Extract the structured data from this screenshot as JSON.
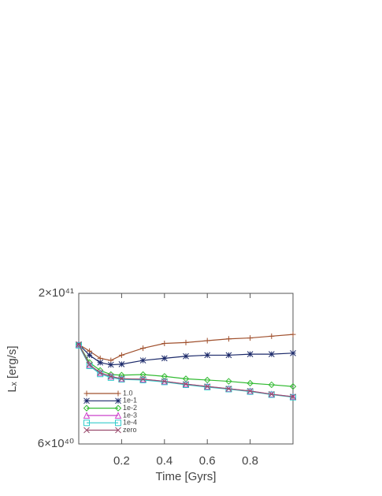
{
  "chart_data": {
    "type": "line",
    "xlabel": "Time [Gyrs]",
    "ylabel": "Lₓ [erg/s]",
    "x": [
      0,
      0.05,
      0.1,
      0.15,
      0.2,
      0.3,
      0.4,
      0.5,
      0.6,
      0.7,
      0.8,
      0.9,
      1.0
    ],
    "xlim": [
      0,
      1.0
    ],
    "xticks": [
      0.2,
      0.4,
      0.6,
      0.8
    ],
    "ylim": [
      6e+40,
      2e+41
    ],
    "ylog": true,
    "yticks": [
      {
        "value": 2e+41,
        "label": "2×10⁴¹"
      },
      {
        "value": 6e+40,
        "label": "6×10⁴⁰"
      }
    ],
    "legend": "lower left",
    "series": [
      {
        "name": "1.0",
        "color": "#a0502d",
        "marker": "plus",
        "values": [
          1.33e+41,
          1.26e+41,
          1.19e+41,
          1.17e+41,
          1.22e+41,
          1.29e+41,
          1.34e+41,
          1.35e+41,
          1.37e+41,
          1.39e+41,
          1.4e+41,
          1.42e+41,
          1.44e+41
        ]
      },
      {
        "name": "1e-1",
        "color": "#1c2a6a",
        "marker": "star",
        "values": [
          1.33e+41,
          1.22e+41,
          1.15e+41,
          1.13e+41,
          1.135e+41,
          1.17e+41,
          1.19e+41,
          1.21e+41,
          1.22e+41,
          1.22e+41,
          1.23e+41,
          1.23e+41,
          1.24e+41
        ]
      },
      {
        "name": "1e-2",
        "color": "#33bb33",
        "marker": "diamond",
        "values": [
          1.33e+41,
          1.15e+41,
          1.08e+41,
          1.045e+41,
          1.04e+41,
          1.045e+41,
          1.03e+41,
          1.01e+41,
          1e+41,
          9.9e+40,
          9.75e+40,
          9.63e+40,
          9.5e+40
        ]
      },
      {
        "name": "1e-3",
        "color": "#cc44cc",
        "marker": "triangle",
        "values": [
          1.33e+41,
          1.13e+41,
          1.06e+41,
          1.03e+41,
          1.01e+41,
          1.007e+41,
          9.9e+40,
          9.68e+40,
          9.5e+40,
          9.33e+40,
          9.16e+40,
          8.93e+40,
          8.75e+40
        ]
      },
      {
        "name": "1e-4",
        "color": "#33cccc",
        "marker": "square",
        "values": [
          1.32e+41,
          1.12e+41,
          1.05e+41,
          1.02e+41,
          1.005e+41,
          1e+41,
          9.85e+40,
          9.63e+40,
          9.45e+40,
          9.3e+40,
          9.12e+40,
          8.9e+40,
          8.72e+40
        ]
      },
      {
        "name": "zero",
        "color": "#9a4c6e",
        "marker": "cross",
        "values": [
          1.33e+41,
          1.13e+41,
          1.06e+41,
          1.03e+41,
          1.01e+41,
          1.007e+41,
          9.9e+40,
          9.68e+40,
          9.5e+40,
          9.33e+40,
          9.16e+40,
          8.93e+40,
          8.75e+40
        ]
      }
    ]
  }
}
